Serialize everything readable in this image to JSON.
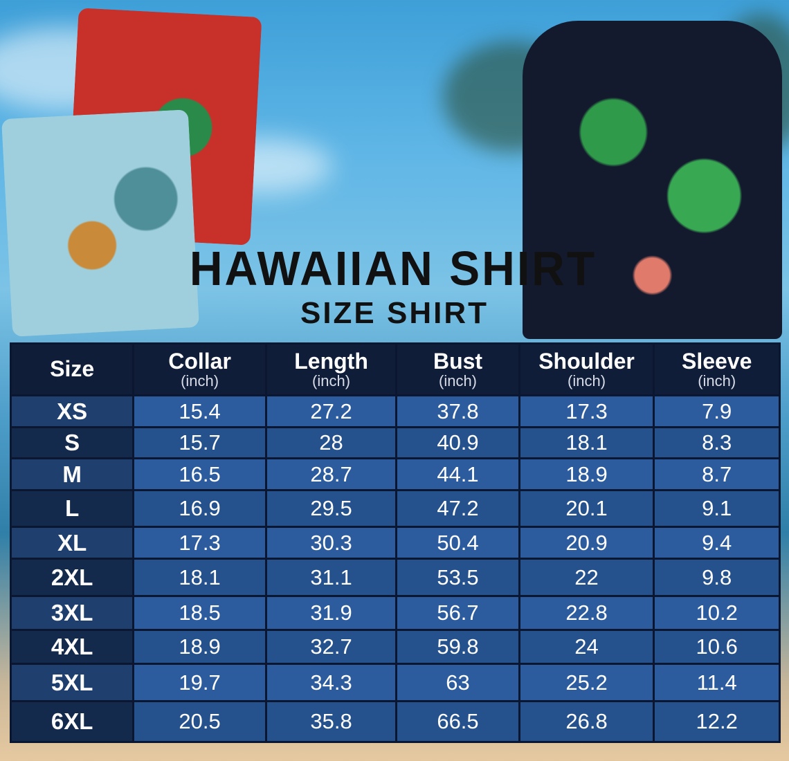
{
  "title": "HAWAIIAN SHIRT",
  "subtitle": "SIZE SHIRT",
  "colors": {
    "header": "#0f1d38",
    "row_light": "#2c5c9e",
    "row_dark": "#25518c",
    "size_cell": "#142a4c"
  },
  "table": {
    "headers": [
      {
        "label": "Size",
        "unit": ""
      },
      {
        "label": "Collar",
        "unit": "(inch)"
      },
      {
        "label": "Length",
        "unit": "(inch)"
      },
      {
        "label": "Bust",
        "unit": "(inch)"
      },
      {
        "label": "Shoulder",
        "unit": "(inch)"
      },
      {
        "label": "Sleeve",
        "unit": "(inch)"
      }
    ],
    "rows": [
      [
        "XS",
        "15.4",
        "27.2",
        "37.8",
        "17.3",
        "7.9"
      ],
      [
        "S",
        "15.7",
        "28",
        "40.9",
        "18.1",
        "8.3"
      ],
      [
        "M",
        "16.5",
        "28.7",
        "44.1",
        "18.9",
        "8.7"
      ],
      [
        "L",
        "16.9",
        "29.5",
        "47.2",
        "20.1",
        "9.1"
      ],
      [
        "XL",
        "17.3",
        "30.3",
        "50.4",
        "20.9",
        "9.4"
      ],
      [
        "2XL",
        "18.1",
        "31.1",
        "53.5",
        "22",
        "9.8"
      ],
      [
        "3XL",
        "18.5",
        "31.9",
        "56.7",
        "22.8",
        "10.2"
      ],
      [
        "4XL",
        "18.9",
        "32.7",
        "59.8",
        "24",
        "10.6"
      ],
      [
        "5XL",
        "19.7",
        "34.3",
        "63",
        "25.2",
        "11.4"
      ],
      [
        "6XL",
        "20.5",
        "35.8",
        "66.5",
        "26.8",
        "12.2"
      ]
    ]
  }
}
